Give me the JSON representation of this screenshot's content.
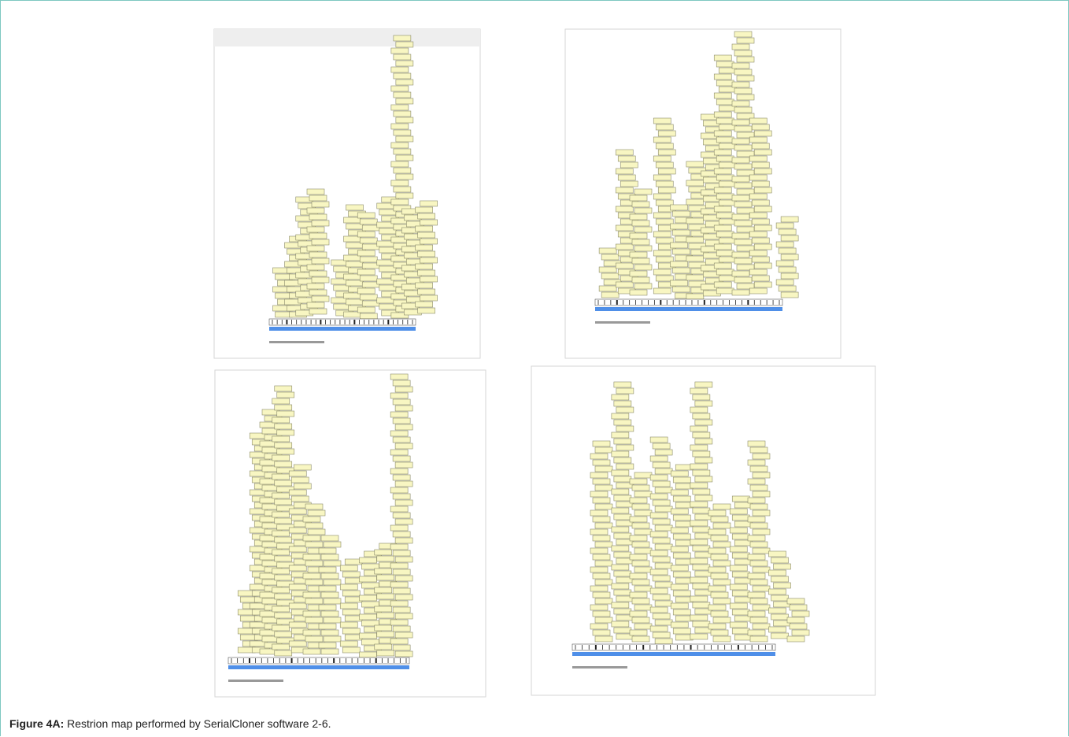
{
  "caption": {
    "label": "Figure 4A:",
    "text": "Restrion map performed by SerialCloner software 2-6."
  }
}
